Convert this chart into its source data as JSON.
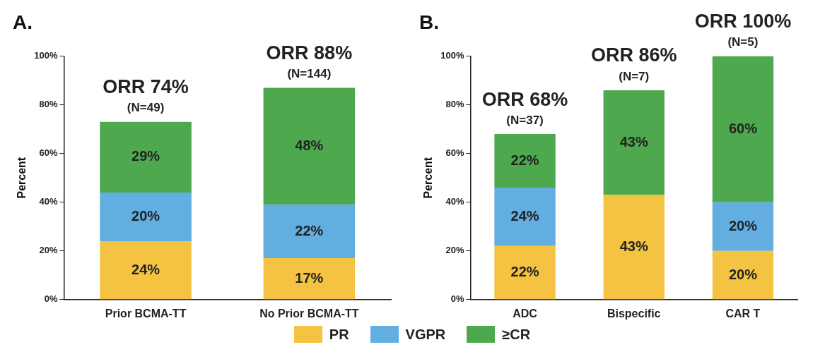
{
  "chart_data": [
    {
      "type": "bar",
      "title": "A.",
      "ylabel": "Percent",
      "categories": [
        "Prior BCMA-TT",
        "No Prior BCMA-TT"
      ],
      "stacked": true,
      "ylim": [
        0,
        100
      ],
      "yticks": [
        {
          "value": 0,
          "label": "0%"
        },
        {
          "value": 20,
          "label": "20%"
        },
        {
          "value": 40,
          "label": "40%"
        },
        {
          "value": 60,
          "label": "60%"
        },
        {
          "value": 80,
          "label": "80%"
        },
        {
          "value": 100,
          "label": "100%"
        }
      ],
      "grid": false,
      "legend": "bottom",
      "series": [
        {
          "name": "PR",
          "color": "#f5c342",
          "values": [
            24,
            17
          ],
          "value_labels": [
            "24%",
            "17%"
          ]
        },
        {
          "name": "VGPR",
          "color": "#62aee0",
          "values": [
            20,
            22
          ],
          "value_labels": [
            "20%",
            "22%"
          ]
        },
        {
          "name": "≥CR",
          "color": "#4ea84e",
          "values": [
            29,
            48
          ],
          "value_labels": [
            "29%",
            "48%"
          ]
        }
      ],
      "totals": [
        "ORR 74%",
        "ORR 88%"
      ],
      "annotations": [
        {
          "text": "(N=49)",
          "x": "Prior BCMA-TT",
          "y": 73
        },
        {
          "text": "(N=144)",
          "x": "No Prior BCMA-TT",
          "y": 87
        }
      ]
    },
    {
      "type": "bar",
      "title": "B.",
      "ylabel": "Percent",
      "categories": [
        "ADC",
        "Bispecific",
        "CAR T"
      ],
      "stacked": true,
      "ylim": [
        0,
        100
      ],
      "yticks": [
        {
          "value": 0,
          "label": "0%"
        },
        {
          "value": 20,
          "label": "20%"
        },
        {
          "value": 40,
          "label": "40%"
        },
        {
          "value": 60,
          "label": "60%"
        },
        {
          "value": 80,
          "label": "80%"
        },
        {
          "value": 100,
          "label": "100%"
        }
      ],
      "grid": false,
      "series": [
        {
          "color": "#f5c342",
          "values": [
            22,
            43,
            20
          ],
          "value_labels": [
            "22%",
            "43%",
            "20%"
          ]
        },
        {
          "color": "#62aee0",
          "values": [
            24,
            0,
            20
          ],
          "value_labels": [
            "24%",
            null,
            "20%"
          ]
        },
        {
          "color": "#4ea84e",
          "values": [
            22,
            43,
            60
          ],
          "value_labels": [
            "22%",
            "43%",
            "60%"
          ]
        }
      ],
      "totals": [
        "ORR 68%",
        "ORR 86%",
        "ORR 100%"
      ],
      "annotations": [
        {
          "text": "(N=37)",
          "x": "ADC",
          "y": 68
        },
        {
          "text": "(N=7)",
          "x": "Bispecific",
          "y": 86
        },
        {
          "text": "(N=5)",
          "x": "CAR T",
          "y": 100
        }
      ]
    }
  ]
}
